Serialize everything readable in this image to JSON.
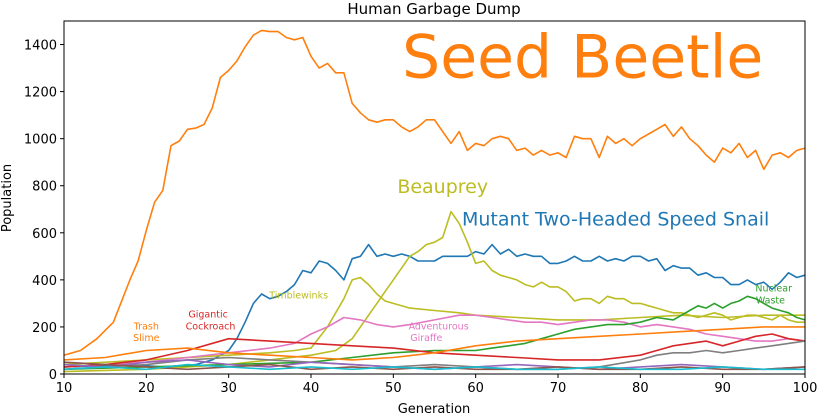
{
  "chart_data": {
    "type": "line",
    "title": "Human Garbage Dump",
    "xlabel": "Generation",
    "ylabel": "Population",
    "xlim": [
      10,
      100
    ],
    "ylim": [
      0,
      1500
    ],
    "x_ticks": [
      "10",
      "20",
      "30",
      "40",
      "50",
      "60",
      "70",
      "80",
      "90",
      "100"
    ],
    "y_ticks": [
      "0",
      "200",
      "400",
      "600",
      "800",
      "1000",
      "1200",
      "1400"
    ],
    "grid": false,
    "legend": "none",
    "series": [
      {
        "name": "Seed Beetle",
        "color": "#ff7f0e",
        "x": [
          10,
          12,
          14,
          16,
          18,
          19,
          20,
          21,
          22,
          23,
          24,
          25,
          26,
          27,
          28,
          29,
          30,
          31,
          32,
          33,
          34,
          35,
          36,
          37,
          38,
          39,
          40,
          41,
          42,
          43,
          44,
          45,
          46,
          47,
          48,
          49,
          50,
          51,
          52,
          53,
          54,
          55,
          56,
          57,
          58,
          59,
          60,
          61,
          62,
          63,
          64,
          65,
          66,
          67,
          68,
          69,
          70,
          71,
          72,
          73,
          74,
          75,
          76,
          77,
          78,
          79,
          80,
          81,
          82,
          83,
          84,
          85,
          86,
          87,
          88,
          89,
          90,
          91,
          92,
          93,
          94,
          95,
          96,
          97,
          98,
          99,
          100
        ],
        "values": [
          80,
          100,
          150,
          220,
          400,
          480,
          610,
          730,
          780,
          970,
          990,
          1040,
          1045,
          1060,
          1130,
          1260,
          1290,
          1330,
          1390,
          1440,
          1460,
          1455,
          1455,
          1430,
          1420,
          1430,
          1350,
          1300,
          1320,
          1280,
          1280,
          1150,
          1110,
          1080,
          1070,
          1080,
          1080,
          1050,
          1030,
          1050,
          1080,
          1080,
          1030,
          980,
          1030,
          950,
          980,
          970,
          1000,
          1010,
          1000,
          950,
          960,
          930,
          950,
          930,
          940,
          920,
          1010,
          1000,
          1000,
          920,
          1010,
          980,
          1000,
          970,
          1000,
          1020,
          1040,
          1060,
          1010,
          1050,
          1000,
          970,
          930,
          900,
          960,
          940,
          980,
          920,
          950,
          870,
          930,
          940,
          920,
          950,
          960
        ]
      },
      {
        "name": "Mutant Two-Headed Speed Snail",
        "color": "#1f77b4",
        "x": [
          10,
          14,
          18,
          22,
          26,
          28,
          30,
          31,
          32,
          33,
          34,
          35,
          36,
          37,
          38,
          39,
          40,
          41,
          42,
          43,
          44,
          45,
          46,
          47,
          48,
          49,
          50,
          51,
          52,
          53,
          54,
          55,
          56,
          57,
          58,
          59,
          60,
          61,
          62,
          63,
          64,
          65,
          66,
          67,
          68,
          69,
          70,
          71,
          72,
          73,
          74,
          75,
          76,
          77,
          78,
          79,
          80,
          81,
          82,
          83,
          84,
          85,
          86,
          87,
          88,
          89,
          90,
          91,
          92,
          93,
          94,
          95,
          96,
          97,
          98,
          99,
          100
        ],
        "values": [
          30,
          35,
          40,
          30,
          40,
          60,
          100,
          150,
          220,
          300,
          340,
          320,
          330,
          350,
          380,
          440,
          430,
          480,
          470,
          440,
          400,
          490,
          500,
          550,
          500,
          510,
          500,
          510,
          500,
          480,
          480,
          480,
          500,
          500,
          500,
          500,
          520,
          510,
          550,
          510,
          530,
          500,
          510,
          500,
          500,
          470,
          470,
          480,
          500,
          480,
          480,
          500,
          480,
          490,
          480,
          500,
          500,
          480,
          490,
          440,
          460,
          450,
          450,
          420,
          430,
          410,
          410,
          380,
          380,
          400,
          380,
          390,
          360,
          390,
          430,
          410,
          420
        ]
      },
      {
        "name": "Beauprey",
        "color": "#bcbd22",
        "x": [
          10,
          20,
          30,
          35,
          40,
          43,
          45,
          46,
          47,
          48,
          49,
          50,
          51,
          52,
          53,
          54,
          55,
          56,
          57,
          58,
          59,
          60,
          61,
          62,
          63,
          64,
          65,
          66,
          67,
          68,
          69,
          70,
          71,
          72,
          73,
          74,
          75,
          76,
          77,
          78,
          79,
          80,
          81,
          82,
          83,
          84,
          85,
          86,
          87,
          88,
          89,
          90,
          91,
          92,
          93,
          94,
          95,
          96,
          97,
          98,
          99,
          100
        ],
        "values": [
          10,
          20,
          40,
          60,
          80,
          100,
          150,
          200,
          250,
          300,
          350,
          400,
          450,
          500,
          520,
          550,
          560,
          580,
          690,
          640,
          560,
          470,
          480,
          440,
          420,
          410,
          400,
          380,
          370,
          390,
          370,
          370,
          350,
          310,
          320,
          320,
          300,
          330,
          320,
          320,
          300,
          300,
          290,
          280,
          270,
          260,
          260,
          250,
          240,
          250,
          260,
          250,
          230,
          240,
          250,
          250,
          240,
          230,
          250,
          230,
          220,
          220
        ]
      },
      {
        "name": "Timblewinks",
        "color": "#bcbd22",
        "x": [
          10,
          20,
          30,
          35,
          38,
          40,
          42,
          44,
          45,
          46,
          47,
          48,
          49,
          50,
          52,
          55,
          58,
          60,
          65,
          70,
          75,
          80,
          85,
          90,
          95,
          100
        ],
        "values": [
          40,
          60,
          80,
          90,
          100,
          110,
          200,
          320,
          400,
          410,
          380,
          340,
          310,
          300,
          280,
          270,
          260,
          250,
          240,
          230,
          230,
          240,
          250,
          240,
          250,
          250
        ]
      },
      {
        "name": "Adventurous Giraffe",
        "color": "#e377c2",
        "x": [
          10,
          15,
          20,
          25,
          30,
          35,
          38,
          40,
          42,
          44,
          46,
          48,
          50,
          52,
          55,
          58,
          60,
          62,
          64,
          66,
          68,
          70,
          72,
          74,
          76,
          78,
          80,
          82,
          84,
          86,
          88,
          90,
          92,
          94,
          96,
          98,
          100
        ],
        "values": [
          30,
          40,
          50,
          70,
          90,
          110,
          130,
          170,
          200,
          240,
          230,
          210,
          200,
          210,
          230,
          250,
          250,
          240,
          230,
          220,
          220,
          210,
          220,
          230,
          230,
          220,
          200,
          210,
          200,
          190,
          170,
          160,
          150,
          140,
          140,
          150,
          140
        ]
      },
      {
        "name": "Nuclear Waste",
        "color": "#2ca02c",
        "x": [
          10,
          20,
          30,
          40,
          45,
          50,
          55,
          60,
          62,
          64,
          66,
          68,
          70,
          72,
          74,
          76,
          78,
          80,
          82,
          84,
          85,
          86,
          87,
          88,
          89,
          90,
          91,
          92,
          93,
          94,
          95,
          96,
          97,
          98,
          99,
          100
        ],
        "values": [
          20,
          30,
          40,
          50,
          70,
          90,
          100,
          100,
          110,
          120,
          130,
          150,
          170,
          190,
          200,
          210,
          210,
          220,
          240,
          230,
          250,
          270,
          290,
          280,
          300,
          280,
          300,
          310,
          330,
          320,
          300,
          280,
          270,
          260,
          240,
          230
        ]
      },
      {
        "name": "Gigantic Cockroach",
        "color": "#d62728",
        "x": [
          10,
          15,
          20,
          25,
          30,
          35,
          40,
          45,
          50,
          55,
          60,
          65,
          70,
          75,
          80,
          82,
          84,
          86,
          88,
          90,
          92,
          94,
          96,
          98,
          100
        ],
        "values": [
          30,
          40,
          60,
          100,
          150,
          140,
          130,
          120,
          110,
          90,
          80,
          70,
          60,
          60,
          80,
          100,
          120,
          130,
          140,
          120,
          140,
          160,
          170,
          150,
          140
        ]
      },
      {
        "name": "Trash Slime",
        "color": "#ff7f0e",
        "x": [
          10,
          15,
          20,
          25,
          30,
          35,
          40,
          45,
          50,
          55,
          60,
          65,
          70,
          75,
          80,
          85,
          90,
          95,
          100
        ],
        "values": [
          60,
          70,
          100,
          110,
          90,
          80,
          70,
          60,
          70,
          90,
          120,
          140,
          150,
          160,
          170,
          180,
          190,
          200,
          200
        ]
      },
      {
        "name": "",
        "color": "#7f7f7f",
        "x": [
          10,
          15,
          20,
          25,
          30,
          35,
          40,
          45,
          50,
          55,
          60,
          65,
          70,
          75,
          80,
          82,
          84,
          86,
          88,
          90,
          92,
          94,
          96,
          98,
          100
        ],
        "values": [
          20,
          30,
          40,
          60,
          70,
          60,
          50,
          40,
          30,
          40,
          30,
          20,
          20,
          30,
          60,
          80,
          90,
          90,
          100,
          90,
          100,
          110,
          120,
          130,
          140
        ]
      },
      {
        "name": "",
        "color": "#9467bd",
        "x": [
          10,
          15,
          20,
          25,
          30,
          35,
          40,
          45,
          50,
          55,
          60,
          65,
          70,
          75,
          80,
          85,
          90,
          95,
          100
        ],
        "values": [
          40,
          30,
          50,
          60,
          40,
          30,
          50,
          40,
          30,
          20,
          30,
          40,
          30,
          20,
          30,
          40,
          30,
          20,
          30
        ]
      },
      {
        "name": "",
        "color": "#8c564b",
        "x": [
          10,
          15,
          20,
          25,
          30,
          35,
          40,
          45,
          50,
          55,
          60,
          65,
          70,
          75,
          80,
          85,
          90,
          95,
          100
        ],
        "values": [
          50,
          40,
          30,
          20,
          30,
          40,
          20,
          30,
          20,
          30,
          20,
          20,
          30,
          20,
          20,
          30,
          20,
          20,
          30
        ]
      },
      {
        "name": "",
        "color": "#17becf",
        "x": [
          10,
          15,
          20,
          25,
          30,
          35,
          40,
          45,
          50,
          55,
          60,
          65,
          70,
          75,
          80,
          85,
          90,
          95,
          100
        ],
        "values": [
          20,
          30,
          20,
          40,
          30,
          20,
          30,
          20,
          30,
          20,
          30,
          20,
          20,
          30,
          20,
          20,
          30,
          20,
          20
        ]
      }
    ],
    "annotations": [
      {
        "text": "Seed Beetle",
        "x": 73,
        "y": 1260,
        "color": "#ff7f0e",
        "size": "large"
      },
      {
        "text": "Mutant Two-Headed Speed Snail",
        "x": 77,
        "y": 630,
        "color": "#1f77b4",
        "size": "medium"
      },
      {
        "text": "Beauprey",
        "x": 56,
        "y": 770,
        "color": "#bcbd22",
        "size": "medium"
      },
      {
        "text": "Timblewinks",
        "x": 38.5,
        "y": 320,
        "color": "#bcbd22",
        "size": "small"
      },
      {
        "text": "Gigantic",
        "x": 27.5,
        "y": 240,
        "color": "#d62728",
        "size": "small"
      },
      {
        "text": "Cockroach",
        "x": 27.8,
        "y": 190,
        "color": "#d62728",
        "size": "small"
      },
      {
        "text": "Trash",
        "x": 20,
        "y": 190,
        "color": "#ff7f0e",
        "size": "small"
      },
      {
        "text": "Slime",
        "x": 20,
        "y": 140,
        "color": "#ff7f0e",
        "size": "small"
      },
      {
        "text": "Adventurous",
        "x": 55.5,
        "y": 190,
        "color": "#e377c2",
        "size": "small"
      },
      {
        "text": "Giraffe",
        "x": 54,
        "y": 140,
        "color": "#e377c2",
        "size": "small"
      },
      {
        "text": "Nuclear",
        "x": 96.2,
        "y": 350,
        "color": "#2ca02c",
        "size": "small"
      },
      {
        "text": "Waste",
        "x": 95.8,
        "y": 300,
        "color": "#2ca02c",
        "size": "small"
      }
    ]
  }
}
